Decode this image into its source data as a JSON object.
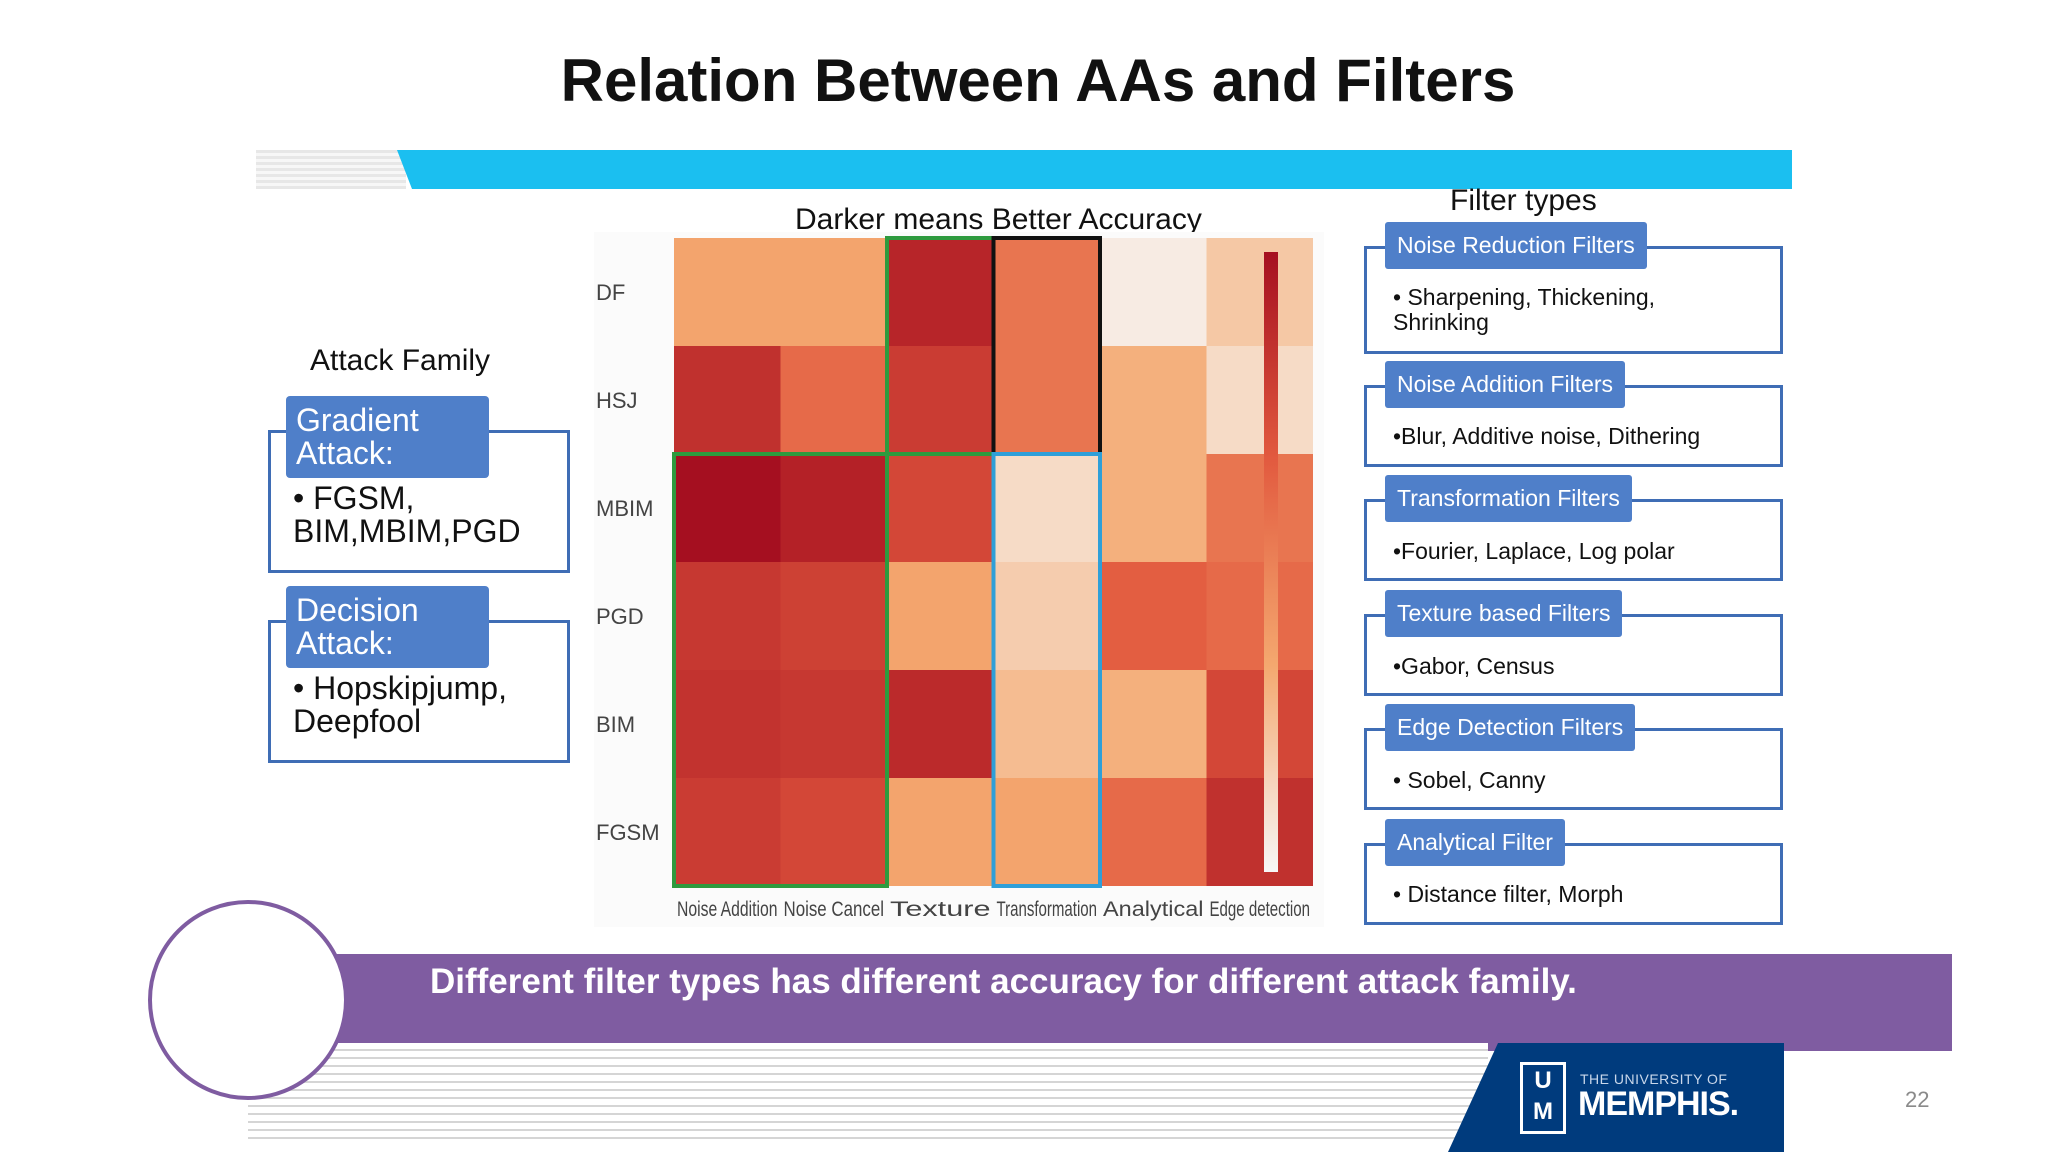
{
  "slide": {
    "title": "Relation Between AAs and Filters",
    "banner": "Different filter types has different accuracy for different attack family.",
    "page_number": "22",
    "logo_small": "THE UNIVERSITY OF",
    "logo_main": "MEMPHIS.",
    "logo_mark": "U M"
  },
  "attack_family": {
    "title": "Attack Family",
    "groups": [
      {
        "head": "Gradient Attack:",
        "text": "• FGSM, BIM,MBIM,PGD"
      },
      {
        "head": "Decision Attack:",
        "text": "• Hopskipjump, Deepfool"
      }
    ]
  },
  "filter_types": {
    "title": "Filter types",
    "items": [
      {
        "head": "Noise Reduction Filters",
        "text": "• Sharpening, Thickening, Shrinking"
      },
      {
        "head": "Noise Addition Filters",
        "text": "•Blur, Additive noise, Dithering"
      },
      {
        "head": "Transformation Filters",
        "text": "•Fourier, Laplace, Log polar"
      },
      {
        "head": "Texture based Filters",
        "text": "•Gabor, Census"
      },
      {
        "head": "Edge Detection Filters",
        "text": "• Sobel, Canny"
      },
      {
        "head": "Analytical Filter",
        "text": "• Distance filter, Morph"
      }
    ]
  },
  "chart_data": {
    "type": "heatmap",
    "title": "Darker means Better Accuracy",
    "rows": [
      "DF",
      "HSJ",
      "MBIM",
      "PGD",
      "BIM",
      "FGSM"
    ],
    "columns": [
      "Noise Addition",
      "Noise Cancel",
      "Texture",
      "Transformation",
      "Analytical",
      "Edge detection"
    ],
    "values": [
      [
        0.35,
        0.35,
        0.9,
        0.55,
        0.05,
        0.2
      ],
      [
        0.85,
        0.6,
        0.8,
        0.55,
        0.3,
        0.12
      ],
      [
        1.0,
        0.92,
        0.75,
        0.12,
        0.3,
        0.55
      ],
      [
        0.82,
        0.78,
        0.35,
        0.18,
        0.65,
        0.6
      ],
      [
        0.84,
        0.82,
        0.88,
        0.25,
        0.3,
        0.75
      ],
      [
        0.8,
        0.75,
        0.35,
        0.35,
        0.6,
        0.85
      ]
    ],
    "colorscale": [
      "#f7f7f7",
      "#f4a86f",
      "#e25a3f",
      "#a50f20"
    ],
    "highlights": [
      {
        "color": "#2e9a3e",
        "rows": [
          0,
          1
        ],
        "cols": [
          2,
          2
        ]
      },
      {
        "color": "#2e9a3e",
        "rows": [
          2,
          5
        ],
        "cols": [
          0,
          1
        ]
      },
      {
        "color": "#111111",
        "rows": [
          0,
          1
        ],
        "cols": [
          3,
          3
        ]
      },
      {
        "color": "#2f9fd8",
        "rows": [
          2,
          5
        ],
        "cols": [
          3,
          3
        ]
      }
    ]
  }
}
